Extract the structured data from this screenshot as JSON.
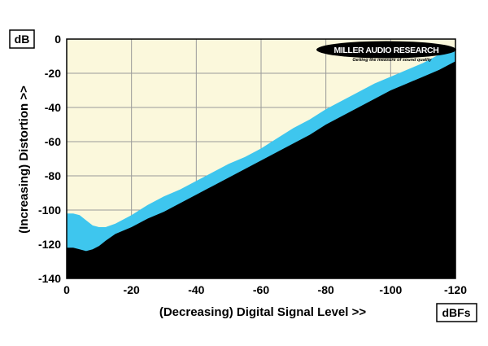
{
  "chart_data": {
    "type": "area",
    "xlabel": "(Decreasing) Digital Signal Level >>",
    "ylabel": "(Increasing) Distortion >>",
    "y_unit": "dB",
    "x_unit": "dBFs",
    "xlim": [
      0,
      -120
    ],
    "ylim": [
      -140,
      0
    ],
    "x_ticks": [
      0,
      -20,
      -40,
      -60,
      -80,
      -100,
      -120
    ],
    "y_ticks": [
      0,
      -20,
      -40,
      -60,
      -80,
      -100,
      -120,
      -140
    ],
    "grid": true,
    "logo": {
      "text": "MILLER AUDIO RESEARCH",
      "tagline": "Getting the measure of sound quality"
    },
    "colors": {
      "background_field": "#fbf8dc",
      "upper_band": "#3ec6ee",
      "lower_fill": "#000000",
      "grid": "#9a9a9a"
    },
    "series": [
      {
        "x": [
          0,
          -2,
          -4,
          -6,
          -8,
          -10,
          -12,
          -15,
          -20,
          -25,
          -30,
          -35,
          -40,
          -45,
          -50,
          -55,
          -60,
          -65,
          -70,
          -75,
          -80,
          -85,
          -90,
          -95,
          -100,
          -105,
          -110,
          -115,
          -120
        ],
        "values": [
          -102,
          -102,
          -103,
          -106,
          -109,
          -110,
          -110,
          -108,
          -103,
          -97,
          -92,
          -88,
          -83,
          -78,
          -73,
          -69,
          -64,
          -58,
          -52,
          -47,
          -41,
          -36,
          -31,
          -26,
          -22,
          -18,
          -14,
          -9,
          -5
        ]
      },
      {
        "x": [
          0,
          -2,
          -4,
          -6,
          -8,
          -10,
          -12,
          -15,
          -20,
          -25,
          -30,
          -35,
          -40,
          -45,
          -50,
          -55,
          -60,
          -65,
          -70,
          -75,
          -80,
          -85,
          -90,
          -95,
          -100,
          -105,
          -110,
          -115,
          -120
        ],
        "values": [
          -122,
          -122,
          -123,
          -124,
          -123,
          -121,
          -118,
          -114,
          -110,
          -105,
          -101,
          -96,
          -91,
          -86,
          -81,
          -76,
          -71,
          -66,
          -61,
          -56,
          -50,
          -45,
          -40,
          -35,
          -30,
          -26,
          -22,
          -18,
          -13
        ]
      }
    ]
  }
}
